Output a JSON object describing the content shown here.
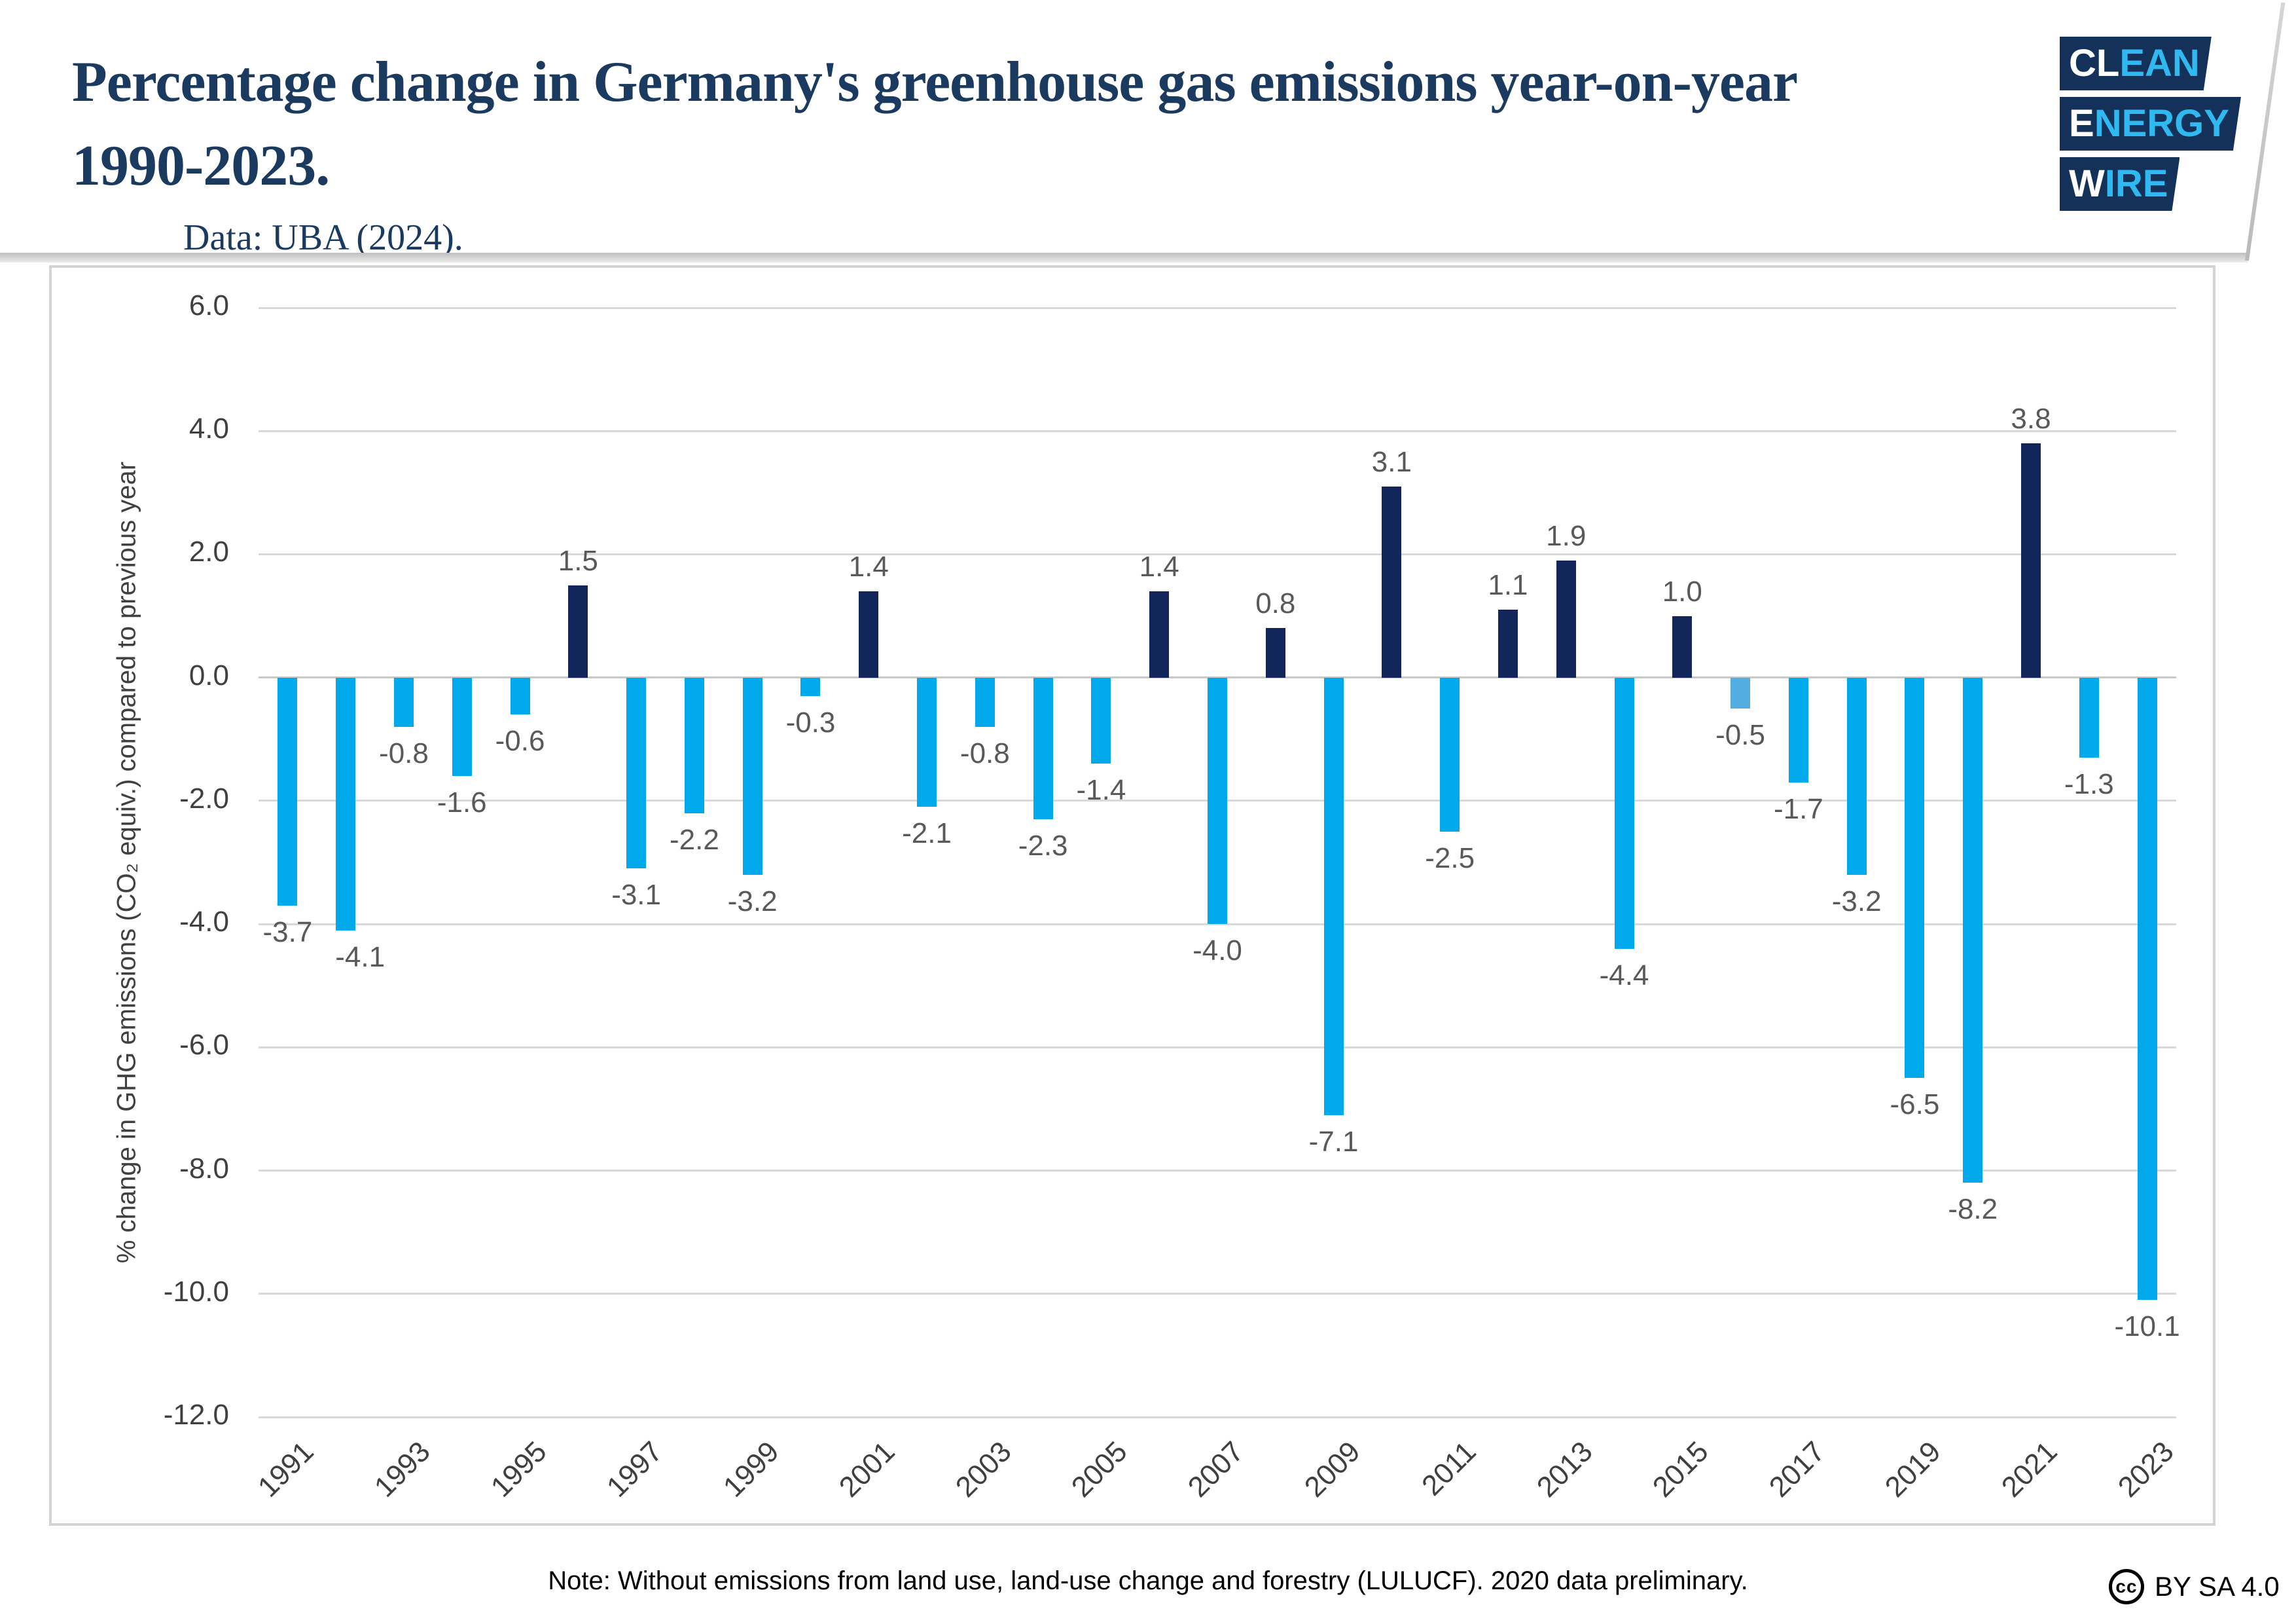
{
  "header": {
    "title_line1": "Percentage change in Germany's greenhouse gas emissions year-on-year",
    "title_line2": "1990-2023.",
    "subtitle": "Data: UBA (2024)."
  },
  "logo": {
    "rows": [
      {
        "white": "CL",
        "cyan": "EAN"
      },
      {
        "white": "E",
        "cyan": "NERGY"
      },
      {
        "white": "W",
        "cyan": "IRE"
      }
    ],
    "navy": "#143159",
    "cyan": "#2fb9f0"
  },
  "chart_data": {
    "type": "bar",
    "title": "Percentage change in Germany's greenhouse gas emissions year-on-year 1990-2023",
    "ylabel": "% change in GHG emissions (CO₂ equiv.) compared to previous year",
    "xlabel": "",
    "ylim": [
      -12.0,
      6.0
    ],
    "grid": true,
    "legend": false,
    "y_ticks": [
      6.0,
      4.0,
      2.0,
      0.0,
      -2.0,
      -4.0,
      -6.0,
      -8.0,
      -10.0,
      -12.0
    ],
    "x_tick_years": [
      1991,
      1993,
      1995,
      1997,
      1999,
      2001,
      2003,
      2005,
      2007,
      2009,
      2011,
      2013,
      2015,
      2017,
      2019,
      2021,
      2023
    ],
    "years": [
      1991,
      1992,
      1993,
      1994,
      1995,
      1996,
      1997,
      1998,
      1999,
      2000,
      2001,
      2002,
      2003,
      2004,
      2005,
      2006,
      2007,
      2008,
      2009,
      2010,
      2011,
      2012,
      2013,
      2014,
      2015,
      2016,
      2017,
      2018,
      2019,
      2020,
      2021,
      2022,
      2023
    ],
    "values": [
      -3.7,
      -4.1,
      -0.8,
      -1.6,
      -0.6,
      1.5,
      -3.1,
      -2.2,
      -3.2,
      -0.3,
      1.4,
      -2.1,
      -0.8,
      -2.3,
      -1.4,
      1.4,
      -4.0,
      0.8,
      -7.1,
      3.1,
      -2.5,
      1.1,
      1.9,
      -4.4,
      1.0,
      -0.5,
      -1.7,
      -3.2,
      -6.5,
      -8.2,
      3.8,
      -1.3,
      -10.1
    ],
    "light_years": [
      2016
    ],
    "colors": {
      "positive": "#12265b",
      "negative": "#00a9eb",
      "negative_light": "#54ade1",
      "grid": "#d9d9d9",
      "data_label": "#595959",
      "tick_label": "#404040"
    }
  },
  "footer": {
    "note": "Note: Without emissions from land use, land-use change and forestry (LULUCF). 2020 data preliminary.",
    "license_icon": "cc",
    "license_label": "BY SA 4.0"
  }
}
